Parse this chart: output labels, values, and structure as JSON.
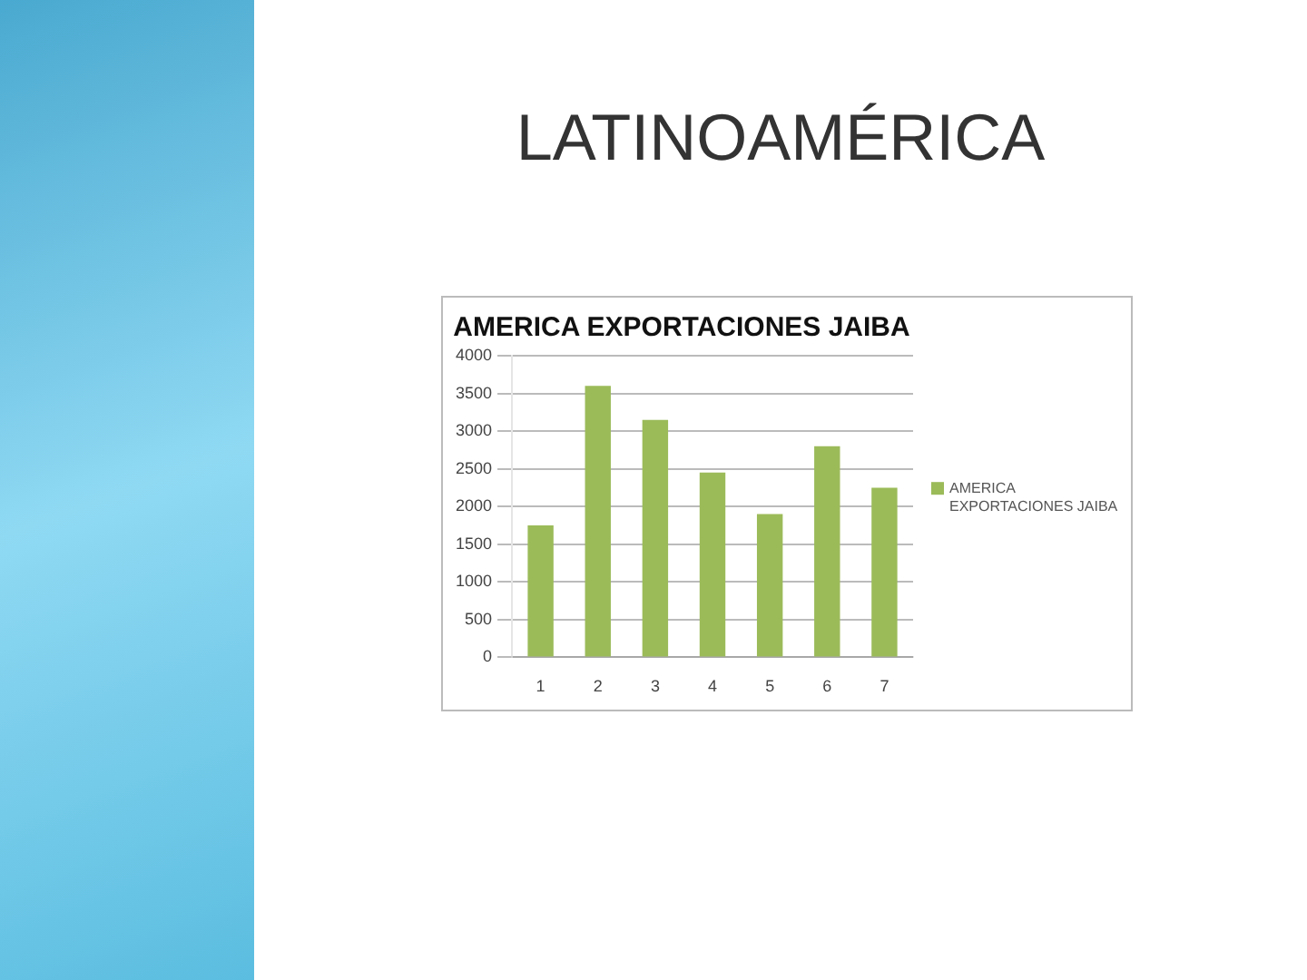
{
  "chart_data": {
    "type": "bar",
    "title": "LATINOAMÉRICA",
    "subtitle": "AMERICA EXPORTACIONES JAIBA",
    "categories": [
      "1",
      "2",
      "3",
      "4",
      "5",
      "6",
      "7"
    ],
    "series": [
      {
        "name": "AMERICA EXPORTACIONES JAIBA",
        "color": "#9bbb59",
        "values": [
          1750,
          3600,
          3150,
          2450,
          1900,
          2800,
          2250
        ]
      }
    ],
    "ylim": [
      0,
      4000
    ],
    "yticks": [
      0,
      500,
      1000,
      1500,
      2000,
      2500,
      3000,
      3500,
      4000
    ],
    "grid": "y",
    "legend": "right"
  }
}
